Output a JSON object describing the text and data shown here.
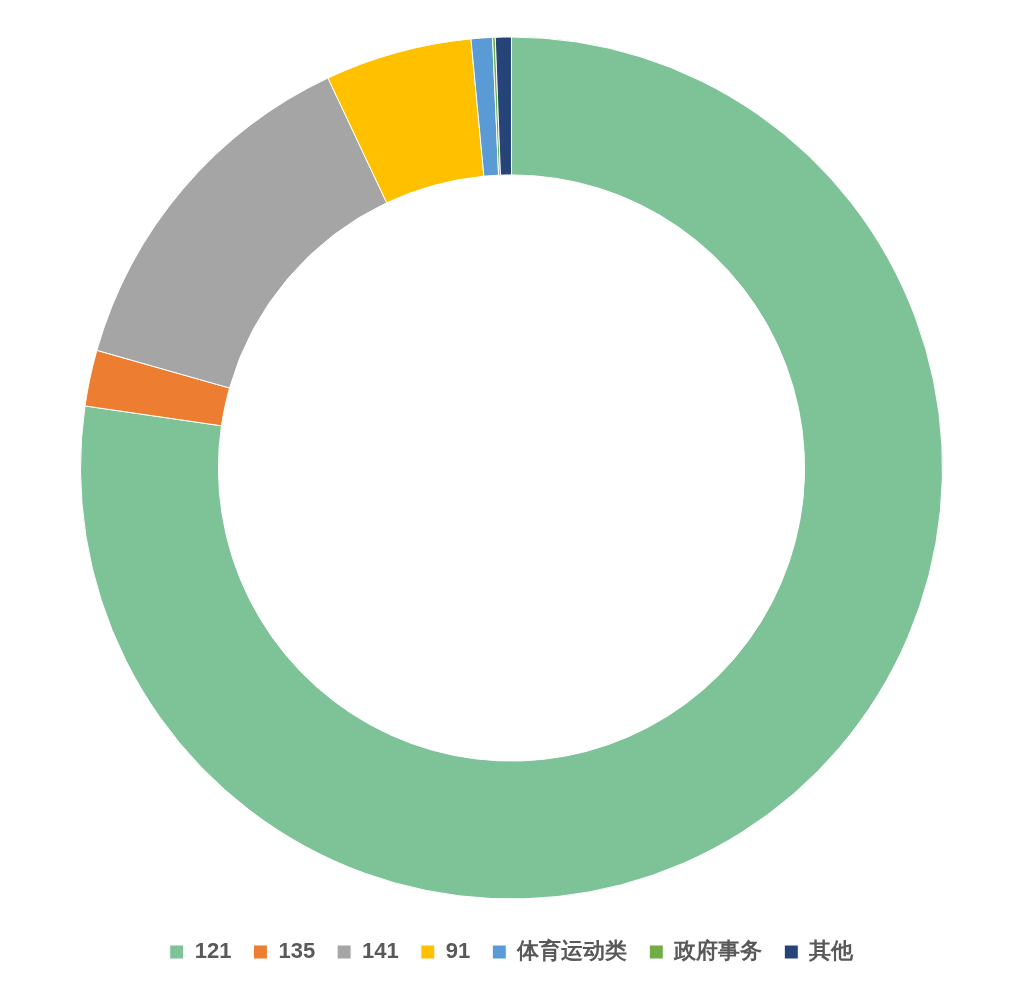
{
  "chart_data": {
    "type": "donut",
    "categories": [
      "121",
      "135",
      "141",
      "91",
      "体育运动类",
      "政府事务",
      "其他"
    ],
    "values": [
      77.3,
      2.1,
      13.6,
      5.5,
      0.8,
      0.1,
      0.6
    ],
    "colors": [
      "#7ec398",
      "#ed7d31",
      "#a5a5a5",
      "#ffc000",
      "#5b9bd5",
      "#70ad47",
      "#264478"
    ],
    "legend": "bottom"
  }
}
